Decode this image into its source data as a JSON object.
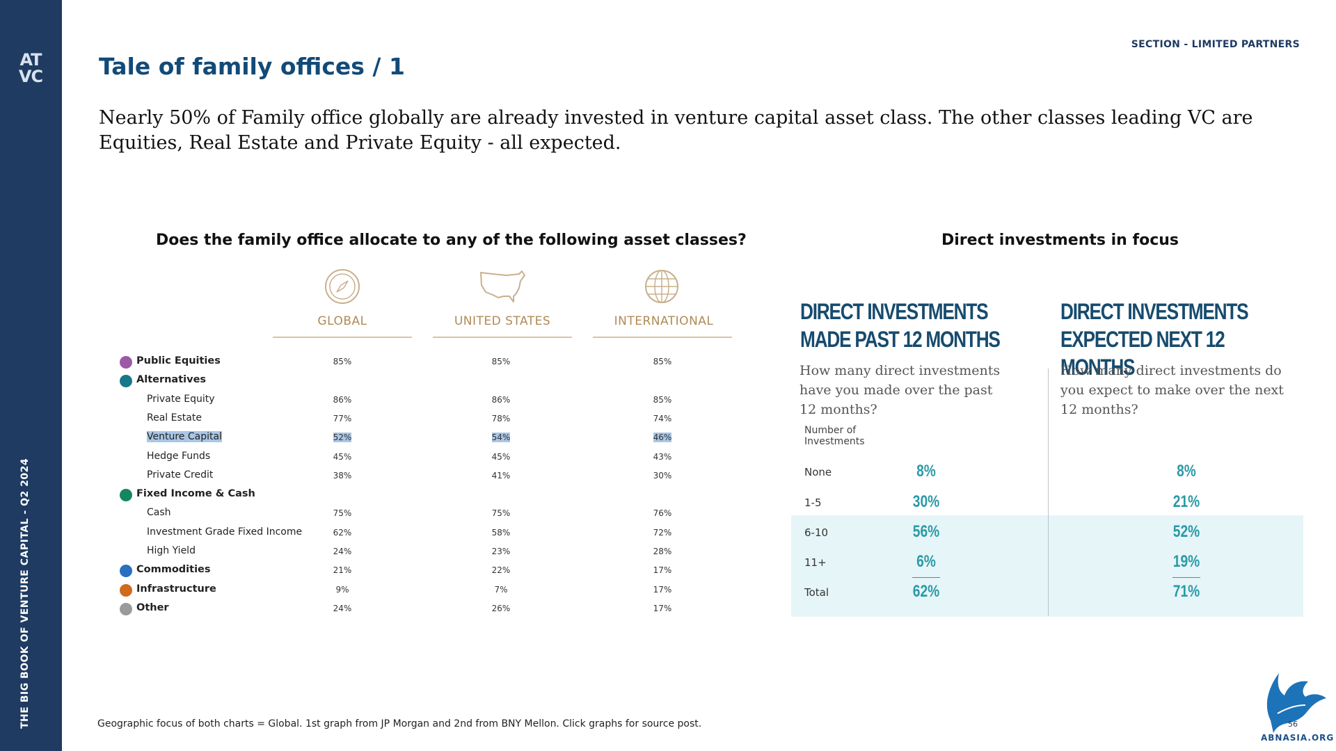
{
  "sidebar": {
    "logo_top": "AT",
    "logo_bottom": "VC",
    "vertical_text": "THE BIG BOOK OF VENTURE CAPITAL - Q2 2024"
  },
  "header": {
    "section": "SECTION - LIMITED PARTNERS",
    "title": "Tale of family offices / 1",
    "lead": "Nearly 50% of Family office globally are already invested in venture capital asset class. The other classes leading VC are Equities, Real Estate and Private Equity - all expected."
  },
  "left_chart": {
    "title": "Does the family office allocate to any of the following asset classes?",
    "columns": [
      "GLOBAL",
      "UNITED STATES",
      "INTERNATIONAL"
    ],
    "rows": [
      {
        "label": "Public Equities",
        "bold": true,
        "dot": "#9b59a6",
        "values": [
          "85%",
          "85%",
          "85%"
        ]
      },
      {
        "label": "Alternatives",
        "bold": true,
        "dot": "#17788a",
        "values": [
          "",
          "",
          ""
        ]
      },
      {
        "label": "Private Equity",
        "bold": false,
        "values": [
          "86%",
          "86%",
          "85%"
        ]
      },
      {
        "label": "Real Estate",
        "bold": false,
        "values": [
          "77%",
          "78%",
          "74%"
        ]
      },
      {
        "label": "Venture Capital",
        "bold": false,
        "highlight": true,
        "values": [
          "52%",
          "54%",
          "46%"
        ]
      },
      {
        "label": "Hedge Funds",
        "bold": false,
        "values": [
          "45%",
          "45%",
          "43%"
        ]
      },
      {
        "label": "Private Credit",
        "bold": false,
        "values": [
          "38%",
          "41%",
          "30%"
        ]
      },
      {
        "label": "Fixed Income & Cash",
        "bold": true,
        "dot": "#15875c",
        "values": [
          "",
          "",
          ""
        ]
      },
      {
        "label": "Cash",
        "bold": false,
        "values": [
          "75%",
          "75%",
          "76%"
        ]
      },
      {
        "label": "Investment Grade Fixed Income",
        "bold": false,
        "values": [
          "62%",
          "58%",
          "72%"
        ]
      },
      {
        "label": "High Yield",
        "bold": false,
        "values": [
          "24%",
          "23%",
          "28%"
        ]
      },
      {
        "label": "Commodities",
        "bold": true,
        "dot": "#2a6fc0",
        "values": [
          "21%",
          "22%",
          "17%"
        ]
      },
      {
        "label": "Infrastructure",
        "bold": true,
        "dot": "#cf6a1e",
        "values": [
          "9%",
          "7%",
          "17%"
        ]
      },
      {
        "label": "Other",
        "bold": true,
        "dot": "#9a9a9a",
        "values": [
          "24%",
          "26%",
          "17%"
        ]
      }
    ]
  },
  "right_chart": {
    "title": "Direct investments in focus",
    "left_head": "DIRECT INVESTMENTS MADE PAST 12 MONTHS",
    "right_head": "DIRECT INVESTMENTS EXPECTED NEXT 12 MONTHS",
    "left_question": "How many direct investments have you made over the past 12 months?",
    "right_question": "How many direct investments do you expect to make over the next 12 months?",
    "number_label": "Number of Investments",
    "rows": [
      {
        "label": "None",
        "past": "8%",
        "next": "8%"
      },
      {
        "label": "1-5",
        "past": "30%",
        "next": "21%"
      },
      {
        "label": "6-10",
        "past": "56%",
        "next": "52%"
      },
      {
        "label": "11+",
        "past": "6%",
        "next": "19%"
      },
      {
        "label": "Total",
        "past": "62%",
        "next": "71%"
      }
    ]
  },
  "footer": {
    "note": "Geographic focus of both charts = Global. 1st graph from JP Morgan and 2nd from BNY Mellon. Click graphs for source post.",
    "page": "56",
    "brand": "ABNASIA.ORG"
  }
}
